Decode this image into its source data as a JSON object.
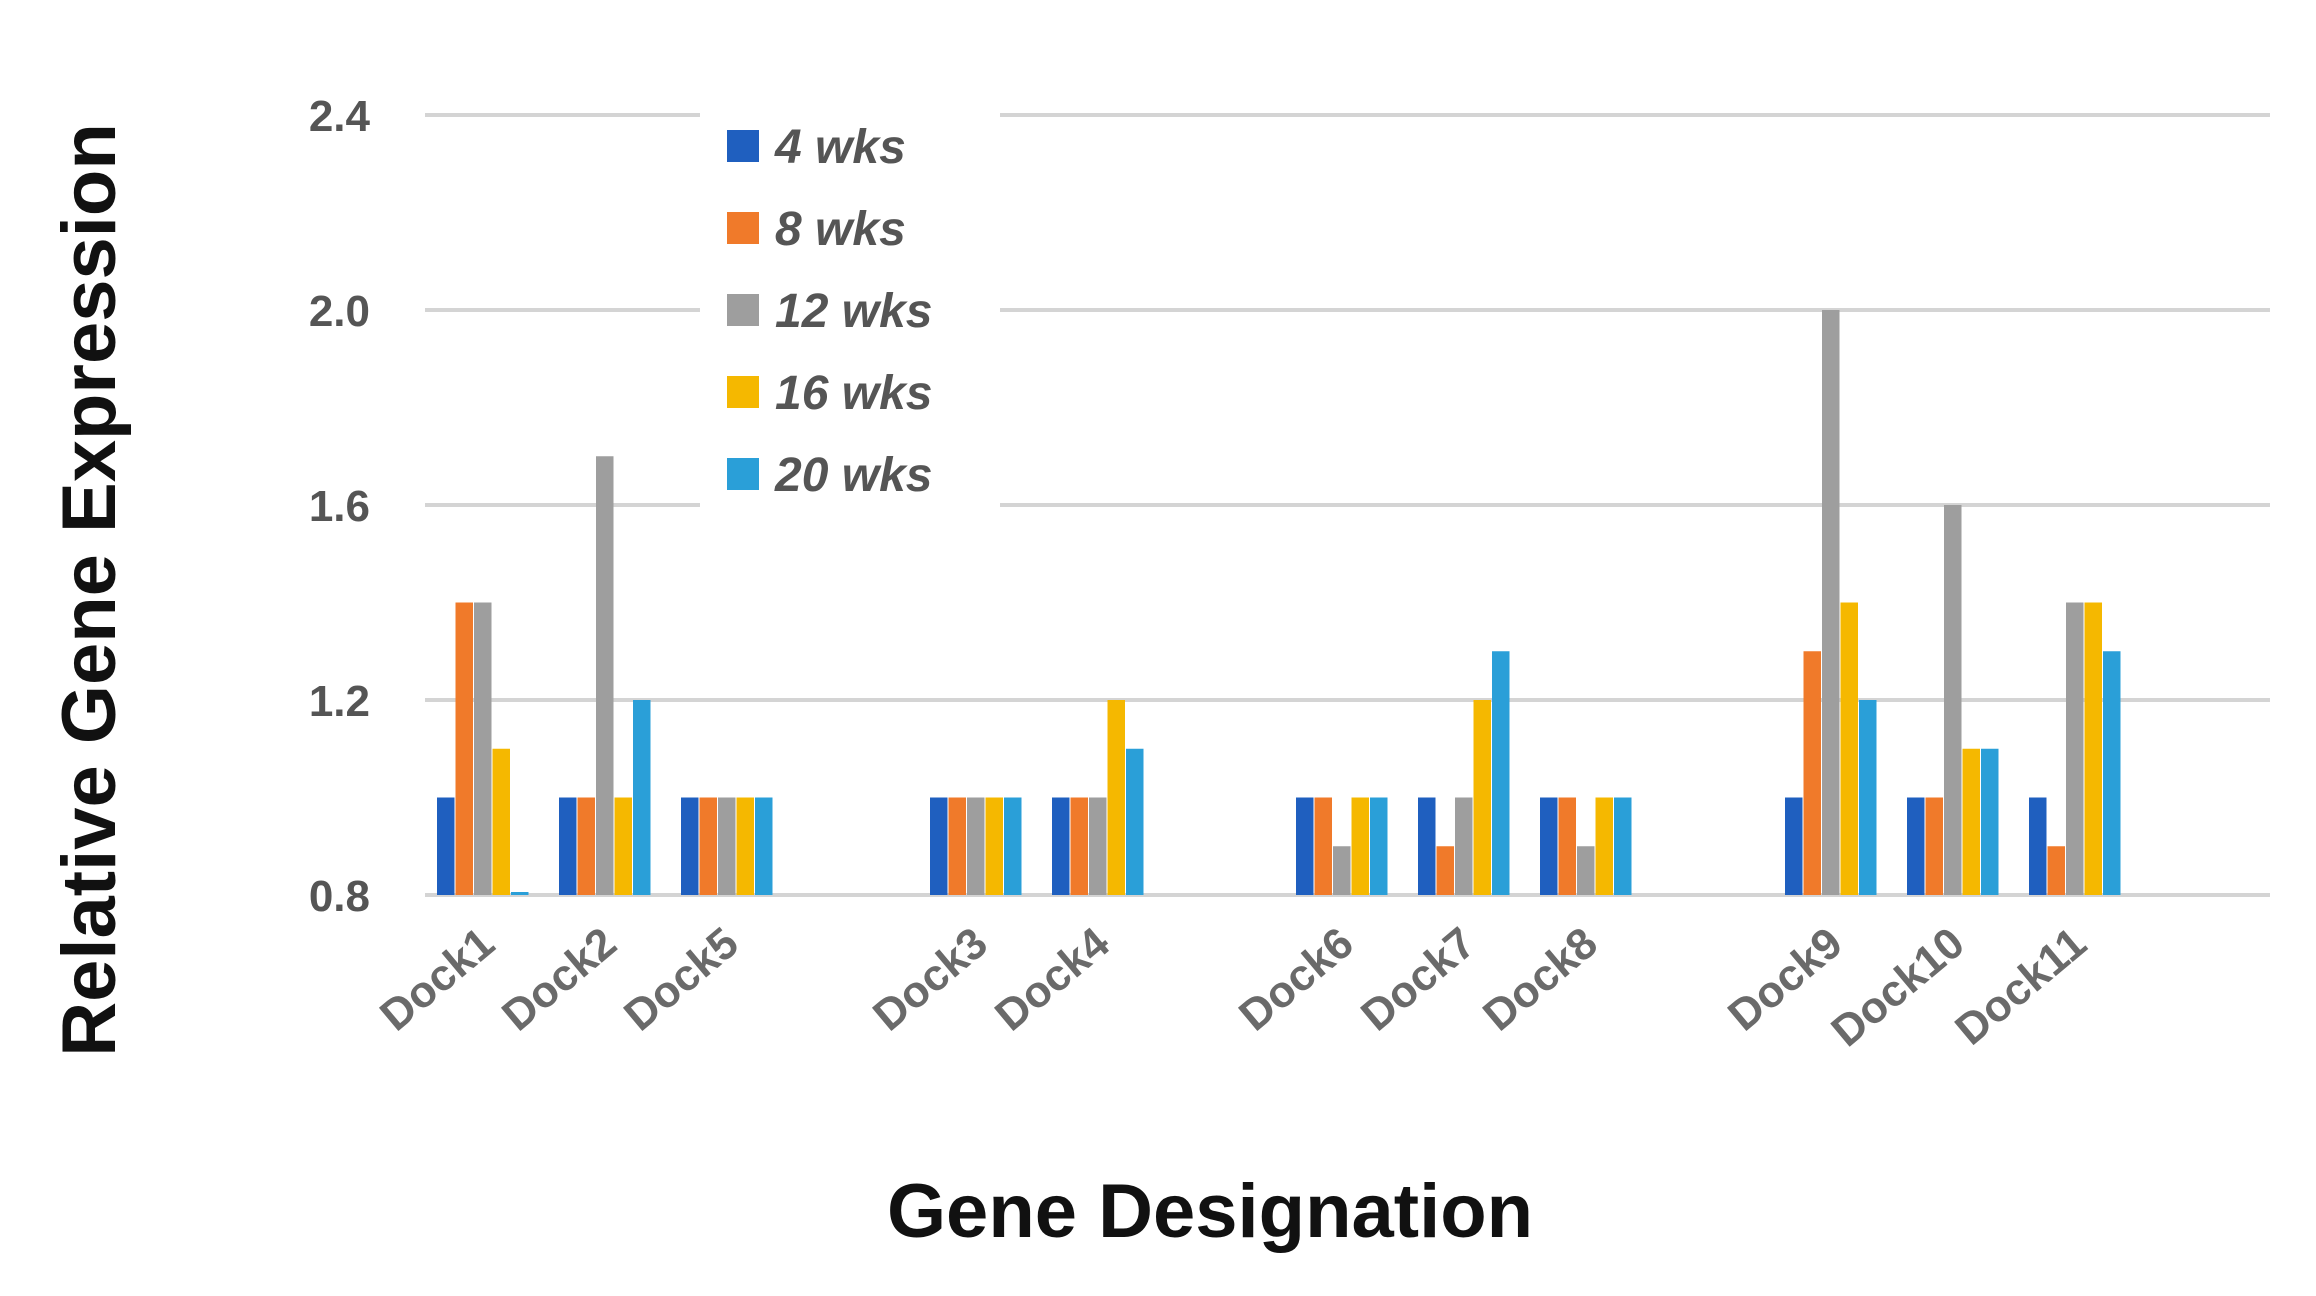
{
  "chart_data": {
    "type": "bar",
    "title": "",
    "xlabel": "Gene Designation",
    "ylabel": "Relative Gene Expression",
    "ylim": [
      0.8,
      2.4
    ],
    "yticks": [
      "0.8",
      "1.2",
      "1.6",
      "2.0",
      "2.4"
    ],
    "ytick_values": [
      0.8,
      1.2,
      1.6,
      2.0,
      2.4
    ],
    "grid": true,
    "legend_position": "top-left",
    "groups": [
      [
        "Dock1",
        "Dock2",
        "Dock5"
      ],
      [
        "Dock3",
        "Dock4"
      ],
      [
        "Dock6",
        "Dock7",
        "Dock8"
      ],
      [
        "Dock9",
        "Dock10",
        "Dock11"
      ]
    ],
    "categories": [
      "Dock1",
      "Dock2",
      "Dock5",
      "Dock3",
      "Dock4",
      "Dock6",
      "Dock7",
      "Dock8",
      "Dock9",
      "Dock10",
      "Dock11"
    ],
    "series": [
      {
        "name": "4 wks",
        "color": "#1f5fbf",
        "values": [
          1.0,
          1.0,
          1.0,
          1.0,
          1.0,
          1.0,
          1.0,
          1.0,
          1.0,
          1.0,
          1.0
        ]
      },
      {
        "name": "8 wks",
        "color": "#f07a2a",
        "values": [
          1.4,
          1.0,
          1.0,
          1.0,
          1.0,
          1.0,
          0.9,
          1.0,
          1.3,
          1.0,
          0.9
        ]
      },
      {
        "name": "12 wks",
        "color": "#9e9e9e",
        "values": [
          1.4,
          1.7,
          1.0,
          1.0,
          1.0,
          0.9,
          1.0,
          0.9,
          2.0,
          1.6,
          1.4
        ]
      },
      {
        "name": "16 wks",
        "color": "#f5b800",
        "values": [
          1.1,
          1.0,
          1.0,
          1.0,
          1.2,
          1.0,
          1.2,
          1.0,
          1.4,
          1.1,
          1.4
        ]
      },
      {
        "name": "20 wks",
        "color": "#2a9fd8",
        "values": [
          0.8,
          1.2,
          1.0,
          1.0,
          1.1,
          1.0,
          1.3,
          1.0,
          1.2,
          1.1,
          1.3
        ]
      }
    ]
  }
}
